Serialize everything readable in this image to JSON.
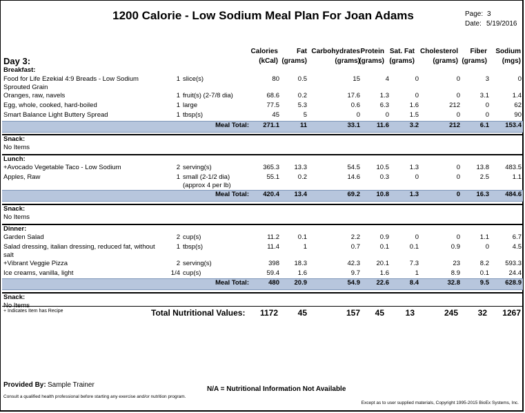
{
  "title": "1200 Calorie - Low Sodium Meal Plan For Joan Adams",
  "page_label": "Page:",
  "page_value": "3",
  "date_label": "Date:",
  "date_value": "5/19/2016",
  "day_label": "Day 3:",
  "columns": [
    {
      "name": "Calories",
      "unit": "(kCal)"
    },
    {
      "name": "Fat",
      "unit": "(grams)"
    },
    {
      "name": "Carbohydrates",
      "unit": "(grams)"
    },
    {
      "name": "Protein",
      "unit": "(grams)"
    },
    {
      "name": "Sat. Fat",
      "unit": "(grams)"
    },
    {
      "name": "Cholesterol",
      "unit": "(grams)"
    },
    {
      "name": "Fiber",
      "unit": "(grams)"
    },
    {
      "name": "Sodium",
      "unit": "(mgs)"
    }
  ],
  "meals": [
    {
      "name": "Breakfast:",
      "items": [
        {
          "food": "Food for Life Ezekial 4:9 Breads - Low Sodium Sprouted Grain",
          "qty": "1",
          "unit": "slice(s)",
          "values": [
            "80",
            "0.5",
            "15",
            "4",
            "0",
            "0",
            "3",
            "0"
          ]
        },
        {
          "food": "Oranges, raw, navels",
          "qty": "1",
          "unit": "fruit(s) (2-7/8 dia)",
          "values": [
            "68.6",
            "0.2",
            "17.6",
            "1.3",
            "0",
            "0",
            "3.1",
            "1.4"
          ]
        },
        {
          "food": "Egg, whole, cooked, hard-boiled",
          "qty": "1",
          "unit": "large",
          "values": [
            "77.5",
            "5.3",
            "0.6",
            "6.3",
            "1.6",
            "212",
            "0",
            "62"
          ]
        },
        {
          "food": "Smart Balance Light Buttery Spread",
          "qty": "1",
          "unit": "tbsp(s)",
          "values": [
            "45",
            "5",
            "0",
            "0",
            "1.5",
            "0",
            "0",
            "90"
          ]
        }
      ],
      "total_label": "Meal Total:",
      "totals": [
        "271.1",
        "11",
        "33.1",
        "11.6",
        "3.2",
        "212",
        "6.1",
        "153.4"
      ]
    },
    {
      "name": "Snack:",
      "empty": "No Items"
    },
    {
      "name": "Lunch:",
      "items": [
        {
          "food": "+Avocado Vegetable Taco - Low Sodium",
          "qty": "2",
          "unit": "serving(s)",
          "values": [
            "365.3",
            "13.3",
            "54.5",
            "10.5",
            "1.3",
            "0",
            "13.8",
            "483.5"
          ]
        },
        {
          "food": "Apples, Raw",
          "qty": "1",
          "unit": "small (2-1/2 dia) (approx 4 per lb)",
          "values": [
            "55.1",
            "0.2",
            "14.6",
            "0.3",
            "0",
            "0",
            "2.5",
            "1.1"
          ]
        }
      ],
      "total_label": "Meal Total:",
      "totals": [
        "420.4",
        "13.4",
        "69.2",
        "10.8",
        "1.3",
        "0",
        "16.3",
        "484.6"
      ]
    },
    {
      "name": "Snack:",
      "empty": "No Items"
    },
    {
      "name": "Dinner:",
      "items": [
        {
          "food": "Garden Salad",
          "qty": "2",
          "unit": "cup(s)",
          "values": [
            "11.2",
            "0.1",
            "2.2",
            "0.9",
            "0",
            "0",
            "1.1",
            "6.7"
          ]
        },
        {
          "food": "Salad dressing, italian dressing, reduced fat, without salt",
          "qty": "1",
          "unit": "tbsp(s)",
          "values": [
            "11.4",
            "1",
            "0.7",
            "0.1",
            "0.1",
            "0.9",
            "0",
            "4.5"
          ]
        },
        {
          "food": "+Vibrant Veggie Pizza",
          "qty": "2",
          "unit": "serving(s)",
          "values": [
            "398",
            "18.3",
            "42.3",
            "20.1",
            "7.3",
            "23",
            "8.2",
            "593.3"
          ]
        },
        {
          "food": "Ice creams, vanilla, light",
          "qty": "1/4",
          "unit": "cup(s)",
          "values": [
            "59.4",
            "1.6",
            "9.7",
            "1.6",
            "1",
            "8.9",
            "0.1",
            "24.4"
          ]
        }
      ],
      "total_label": "Meal Total:",
      "totals": [
        "480",
        "20.9",
        "54.9",
        "22.6",
        "8.4",
        "32.8",
        "9.5",
        "628.9"
      ]
    },
    {
      "name": "Snack:",
      "empty": "No Items"
    }
  ],
  "recipe_note": "+ Indicates Item has Recipe",
  "total_label": "Total Nutritional Values:",
  "grand_totals": [
    "1172",
    "45",
    "157",
    "45",
    "13",
    "245",
    "32",
    "1267"
  ],
  "provided_by_label": "Provided By:",
  "provided_by_name": "Sample Trainer",
  "na_note": "N/A = Nutritional Information Not Available",
  "consult_note": "Consult a qualified health professional before starting any exercise and/or nutrition program.",
  "copyright": "Except as to user supplied materials, Copyright 1995-2015 BioEx Systems, Inc."
}
